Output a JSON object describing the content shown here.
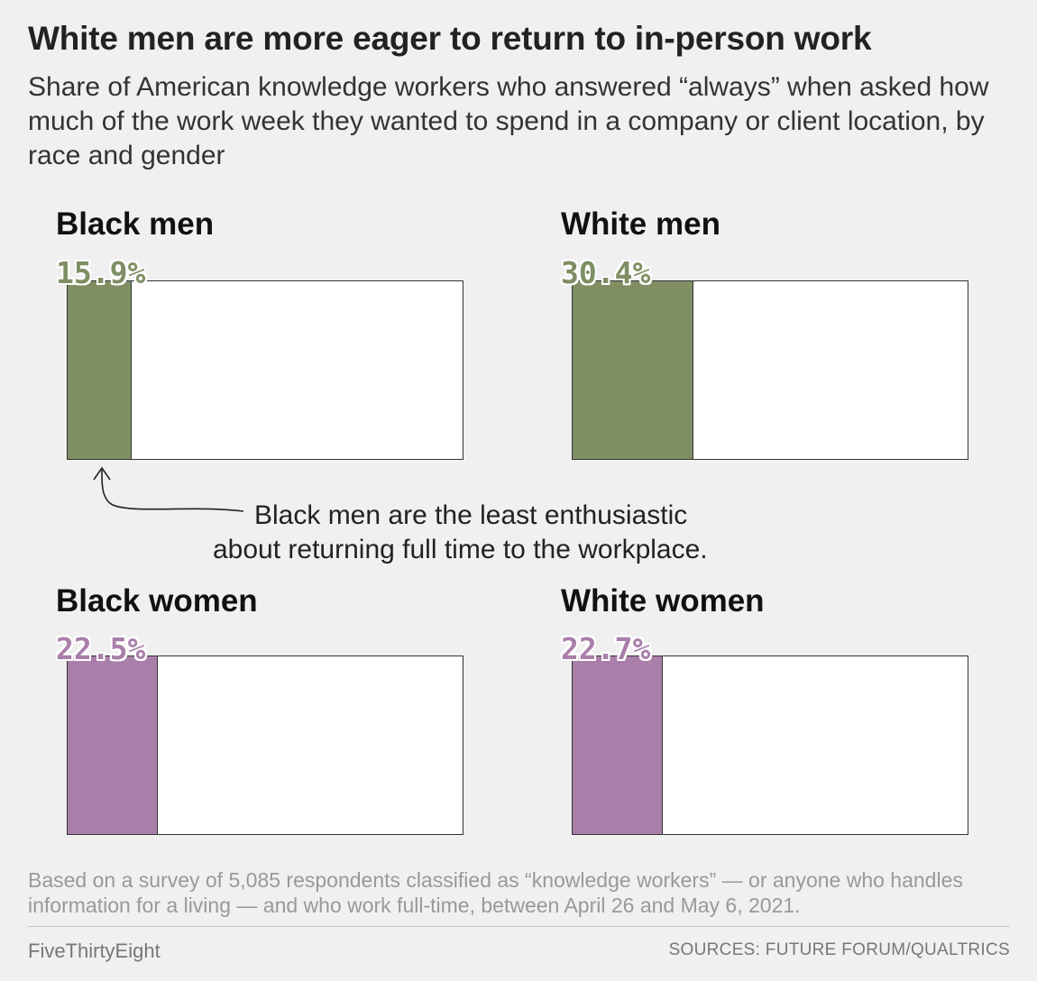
{
  "title": "White men are more eager to return to in-person work",
  "subtitle": "Share of American knowledge workers who answered “always” when asked how much of the work week they wanted to spend in a company or client location, by race and gender",
  "colors": {
    "men": "#7f8f63",
    "women": "#a97faa"
  },
  "chart_data": {
    "type": "bar",
    "orientation": "horizontal",
    "xlim": [
      0,
      100
    ],
    "panels": [
      {
        "label": "Black men",
        "value": 15.9,
        "value_label": "15.9%",
        "group": "men"
      },
      {
        "label": "White men",
        "value": 30.4,
        "value_label": "30.4%",
        "group": "men"
      },
      {
        "label": "Black women",
        "value": 22.5,
        "value_label": "22.5%",
        "group": "women"
      },
      {
        "label": "White women",
        "value": 22.7,
        "value_label": "22.7%",
        "group": "women"
      }
    ],
    "annotation": {
      "line1": "Black men are the least enthusiastic",
      "line2": "about returning full time to the workplace."
    }
  },
  "footnote": "Based on a survey of 5,085 respondents classified as “knowledge workers”  — or anyone who handles information for a living — and who work full-time, between April 26 and May 6, 2021.",
  "brand": "FiveThirtyEight",
  "sources": "SOURCES: FUTURE FORUM/QUALTRICS"
}
